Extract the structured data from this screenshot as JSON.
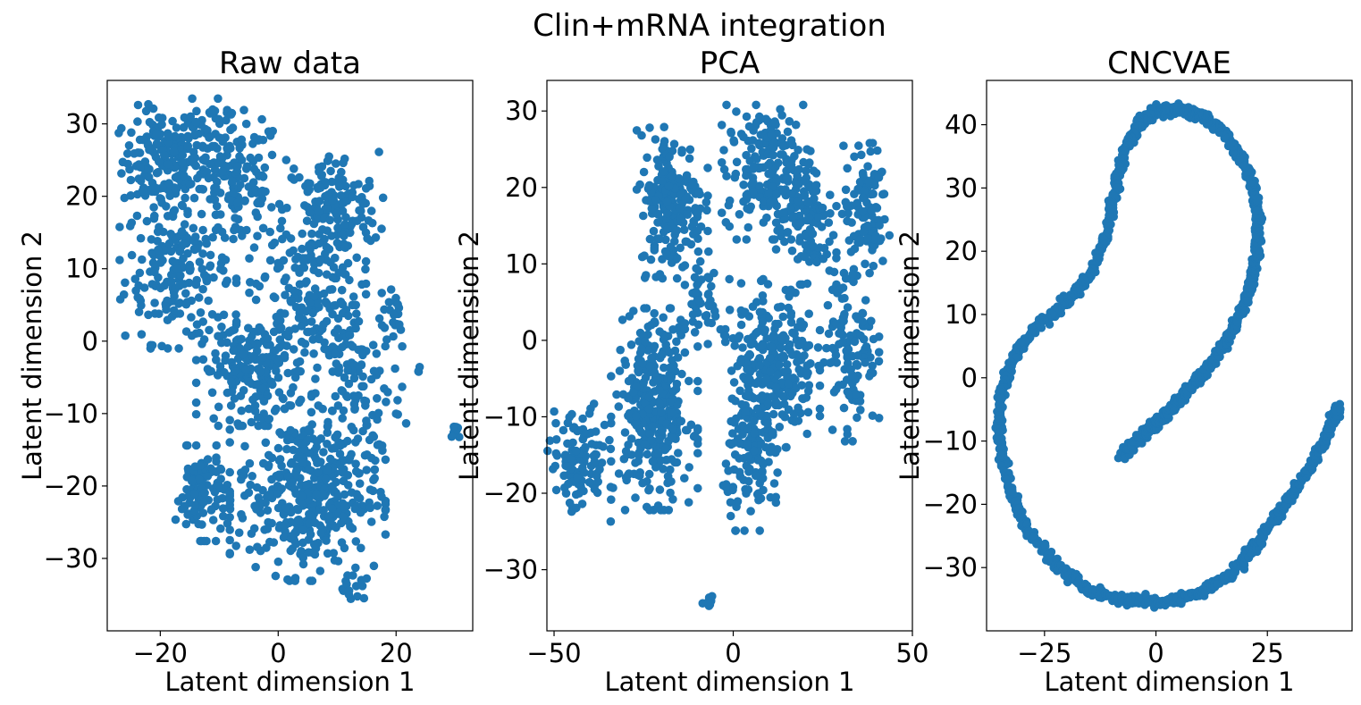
{
  "suptitle": "Clin+mRNA integration",
  "marker_color": "#1f77b4",
  "chart_data": [
    {
      "type": "scatter",
      "title": "Raw data",
      "xlabel": "Latent dimension 1",
      "ylabel": "Latent dimension 2",
      "xlim": [
        -29,
        33
      ],
      "ylim": [
        -40,
        36
      ],
      "xticks": [
        -20,
        0,
        20
      ],
      "yticks": [
        -30,
        -20,
        -10,
        0,
        10,
        20,
        30
      ],
      "clusters": [
        {
          "cx": -20,
          "cy": 25,
          "sx": 3.2,
          "sy": 3.5,
          "n": 150
        },
        {
          "cx": -17,
          "cy": 10,
          "sx": 4.5,
          "sy": 5.0,
          "n": 200
        },
        {
          "cx": -7,
          "cy": 22,
          "sx": 3.8,
          "sy": 4.5,
          "n": 130
        },
        {
          "cx": -12,
          "cy": 28,
          "sx": 3.0,
          "sy": 2.5,
          "n": 60
        },
        {
          "cx": 9,
          "cy": 18,
          "sx": 4.0,
          "sy": 4.0,
          "n": 160
        },
        {
          "cx": 5,
          "cy": 6,
          "sx": 4.5,
          "sy": 5.0,
          "n": 170
        },
        {
          "cx": -4,
          "cy": -4,
          "sx": 4.5,
          "sy": 3.5,
          "n": 200
        },
        {
          "cx": 14,
          "cy": -6,
          "sx": 3.5,
          "sy": 5.0,
          "n": 90
        },
        {
          "cx": -13,
          "cy": -21,
          "sx": 2.2,
          "sy": 3.0,
          "n": 110
        },
        {
          "cx": 5,
          "cy": -21,
          "sx": 6.0,
          "sy": 5.5,
          "n": 420
        },
        {
          "cx": 13,
          "cy": -34,
          "sx": 1.2,
          "sy": 1.5,
          "n": 14
        },
        {
          "cx": 19,
          "cy": 4,
          "sx": 1.8,
          "sy": 2.5,
          "n": 20
        },
        {
          "cx": 30,
          "cy": -11.5,
          "sx": 0.5,
          "sy": 1.0,
          "n": 8
        },
        {
          "cx": 24,
          "cy": -4,
          "sx": 0.3,
          "sy": 0.4,
          "n": 3
        }
      ]
    },
    {
      "type": "scatter",
      "title": "PCA",
      "xlabel": "Latent dimension 1",
      "ylabel": "Latent dimension 2",
      "xlim": [
        -52,
        50
      ],
      "ylim": [
        -38,
        34
      ],
      "xticks": [
        -50,
        0,
        50
      ],
      "yticks": [
        -30,
        -20,
        -10,
        0,
        10,
        20,
        30
      ],
      "clusters": [
        {
          "cx": -17,
          "cy": 18,
          "sx": 4.5,
          "sy": 4.5,
          "n": 210
        },
        {
          "cx": 10,
          "cy": 22,
          "sx": 6.0,
          "sy": 4.0,
          "n": 210
        },
        {
          "cx": 20,
          "cy": 15,
          "sx": 4.0,
          "sy": 3.5,
          "n": 90
        },
        {
          "cx": 37,
          "cy": 17,
          "sx": 3.0,
          "sy": 4.0,
          "n": 100
        },
        {
          "cx": 33,
          "cy": 0,
          "sx": 3.5,
          "sy": 6.0,
          "n": 130
        },
        {
          "cx": 11,
          "cy": -3,
          "sx": 6.0,
          "sy": 5.0,
          "n": 260
        },
        {
          "cx": 6,
          "cy": -15,
          "sx": 4.0,
          "sy": 4.5,
          "n": 130
        },
        {
          "cx": -22,
          "cy": -9,
          "sx": 5.5,
          "sy": 6.0,
          "n": 330
        },
        {
          "cx": -43,
          "cy": -16,
          "sx": 4.0,
          "sy": 3.5,
          "n": 110
        },
        {
          "cx": -8,
          "cy": 5,
          "sx": 2.5,
          "sy": 3.0,
          "n": 45
        },
        {
          "cx": -7,
          "cy": -34,
          "sx": 0.8,
          "sy": 0.7,
          "n": 10
        }
      ]
    },
    {
      "type": "scatter",
      "title": "CNCVAE",
      "xlabel": "Latent dimension 1",
      "ylabel": "Latent dimension 2",
      "xlim": [
        -38,
        44
      ],
      "ylim": [
        -40,
        47
      ],
      "xticks": [
        -25,
        0,
        25
      ],
      "yticks": [
        -30,
        -20,
        -10,
        0,
        10,
        20,
        30,
        40
      ],
      "curve": [
        [
          -8,
          -12.5
        ],
        [
          -5,
          -10.5
        ],
        [
          -2,
          -8.5
        ],
        [
          1,
          -6.5
        ],
        [
          4,
          -4.5
        ],
        [
          8,
          -1.5
        ],
        [
          12,
          2
        ],
        [
          16,
          6
        ],
        [
          19,
          10
        ],
        [
          21,
          14
        ],
        [
          22.5,
          19
        ],
        [
          23,
          25
        ],
        [
          22,
          30
        ],
        [
          19,
          35
        ],
        [
          15,
          39
        ],
        [
          10,
          41.5
        ],
        [
          5,
          42.5
        ],
        [
          0,
          42
        ],
        [
          -4,
          40
        ],
        [
          -7,
          36
        ],
        [
          -9,
          30
        ],
        [
          -11,
          23
        ],
        [
          -14,
          17
        ],
        [
          -20,
          12
        ],
        [
          -27,
          8
        ],
        [
          -32,
          3
        ],
        [
          -35,
          -3
        ],
        [
          -35,
          -10
        ],
        [
          -33,
          -17
        ],
        [
          -29,
          -24
        ],
        [
          -22,
          -30
        ],
        [
          -14,
          -34
        ],
        [
          -5,
          -35.5
        ],
        [
          2,
          -35.5
        ],
        [
          10,
          -34
        ],
        [
          17,
          -31
        ],
        [
          23,
          -26
        ],
        [
          28,
          -21
        ],
        [
          33,
          -16
        ],
        [
          37,
          -11
        ],
        [
          40,
          -6.5
        ],
        [
          41,
          -5
        ]
      ]
    }
  ]
}
